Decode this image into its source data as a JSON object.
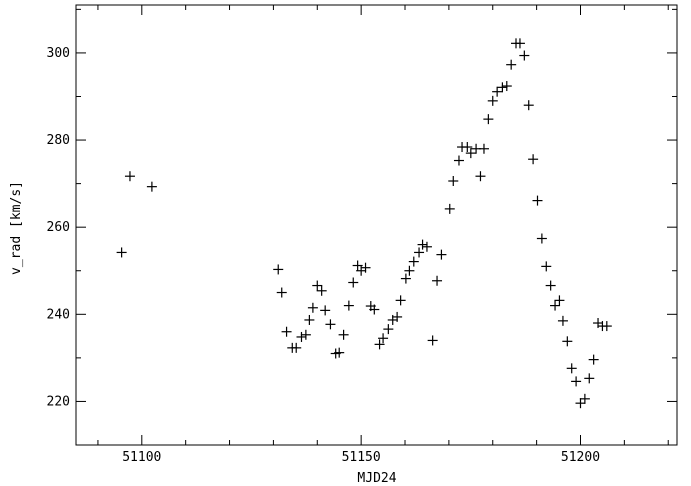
{
  "chart_data": {
    "type": "scatter",
    "title": "",
    "xlabel": "MJD24",
    "ylabel": "v_rad [km/s]",
    "xlim": [
      51085,
      51222
    ],
    "ylim": [
      210,
      311
    ],
    "x_ticks": [
      51100,
      51150,
      51200
    ],
    "y_ticks": [
      220,
      240,
      260,
      280,
      300
    ],
    "x_tick_labels": [
      "51100",
      "51150",
      "51200"
    ],
    "y_tick_labels": [
      "220",
      "240",
      "260",
      "280",
      "300"
    ],
    "marker": "plus",
    "grid": false,
    "series": [
      {
        "points": [
          [
            51095.4,
            254.2
          ],
          [
            51097.3,
            271.7
          ],
          [
            51102.3,
            269.3
          ],
          [
            51131.1,
            250.3
          ],
          [
            51131.9,
            245.0
          ],
          [
            51133.0,
            236.0
          ],
          [
            51134.3,
            232.3
          ],
          [
            51135.2,
            232.3
          ],
          [
            51136.4,
            234.8
          ],
          [
            51137.4,
            235.3
          ],
          [
            51138.2,
            238.7
          ],
          [
            51139.0,
            241.5
          ],
          [
            51140.0,
            246.6
          ],
          [
            51141.0,
            245.4
          ],
          [
            51141.8,
            240.9
          ],
          [
            51143.0,
            237.7
          ],
          [
            51144.2,
            231.0
          ],
          [
            51145.0,
            231.2
          ],
          [
            51146.0,
            235.3
          ],
          [
            51147.2,
            242.0
          ],
          [
            51148.2,
            247.3
          ],
          [
            51149.2,
            251.2
          ],
          [
            51150.0,
            250.0
          ],
          [
            51151.0,
            250.7
          ],
          [
            51152.2,
            241.9
          ],
          [
            51153.0,
            241.1
          ],
          [
            51154.2,
            233.1
          ],
          [
            51155.0,
            234.5
          ],
          [
            51156.2,
            236.6
          ],
          [
            51157.2,
            238.7
          ],
          [
            51158.2,
            239.4
          ],
          [
            51159.0,
            243.2
          ],
          [
            51160.2,
            248.2
          ],
          [
            51161.0,
            250.0
          ],
          [
            51162.0,
            252.1
          ],
          [
            51163.2,
            254.2
          ],
          [
            51164.0,
            256.0
          ],
          [
            51165.0,
            255.5
          ],
          [
            51166.3,
            234.0
          ],
          [
            51167.3,
            247.7
          ],
          [
            51168.3,
            253.7
          ],
          [
            51170.2,
            264.2
          ],
          [
            51171.0,
            270.6
          ],
          [
            51172.3,
            275.3
          ],
          [
            51173.0,
            278.4
          ],
          [
            51174.2,
            278.4
          ],
          [
            51175.0,
            277.0
          ],
          [
            51176.2,
            278.0
          ],
          [
            51177.2,
            271.7
          ],
          [
            51178.0,
            278.0
          ],
          [
            51179.0,
            284.8
          ],
          [
            51180.0,
            289.0
          ],
          [
            51181.0,
            291.1
          ],
          [
            51182.2,
            292.1
          ],
          [
            51183.2,
            292.4
          ],
          [
            51184.2,
            297.3
          ],
          [
            51185.3,
            302.2
          ],
          [
            51186.2,
            302.2
          ],
          [
            51187.2,
            299.4
          ],
          [
            51188.2,
            288.0
          ],
          [
            51189.2,
            275.6
          ],
          [
            51190.2,
            266.1
          ],
          [
            51191.2,
            257.4
          ],
          [
            51192.2,
            251.0
          ],
          [
            51193.2,
            246.6
          ],
          [
            51194.2,
            242.0
          ],
          [
            51195.2,
            243.2
          ],
          [
            51196.0,
            238.5
          ],
          [
            51197.0,
            233.8
          ],
          [
            51198.0,
            227.6
          ],
          [
            51199.0,
            224.6
          ],
          [
            51200.0,
            219.6
          ],
          [
            51201.0,
            220.6
          ],
          [
            51202.0,
            225.3
          ],
          [
            51203.0,
            229.6
          ],
          [
            51204.0,
            238.0
          ],
          [
            51205.0,
            237.3
          ],
          [
            51206.0,
            237.3
          ]
        ]
      }
    ]
  }
}
